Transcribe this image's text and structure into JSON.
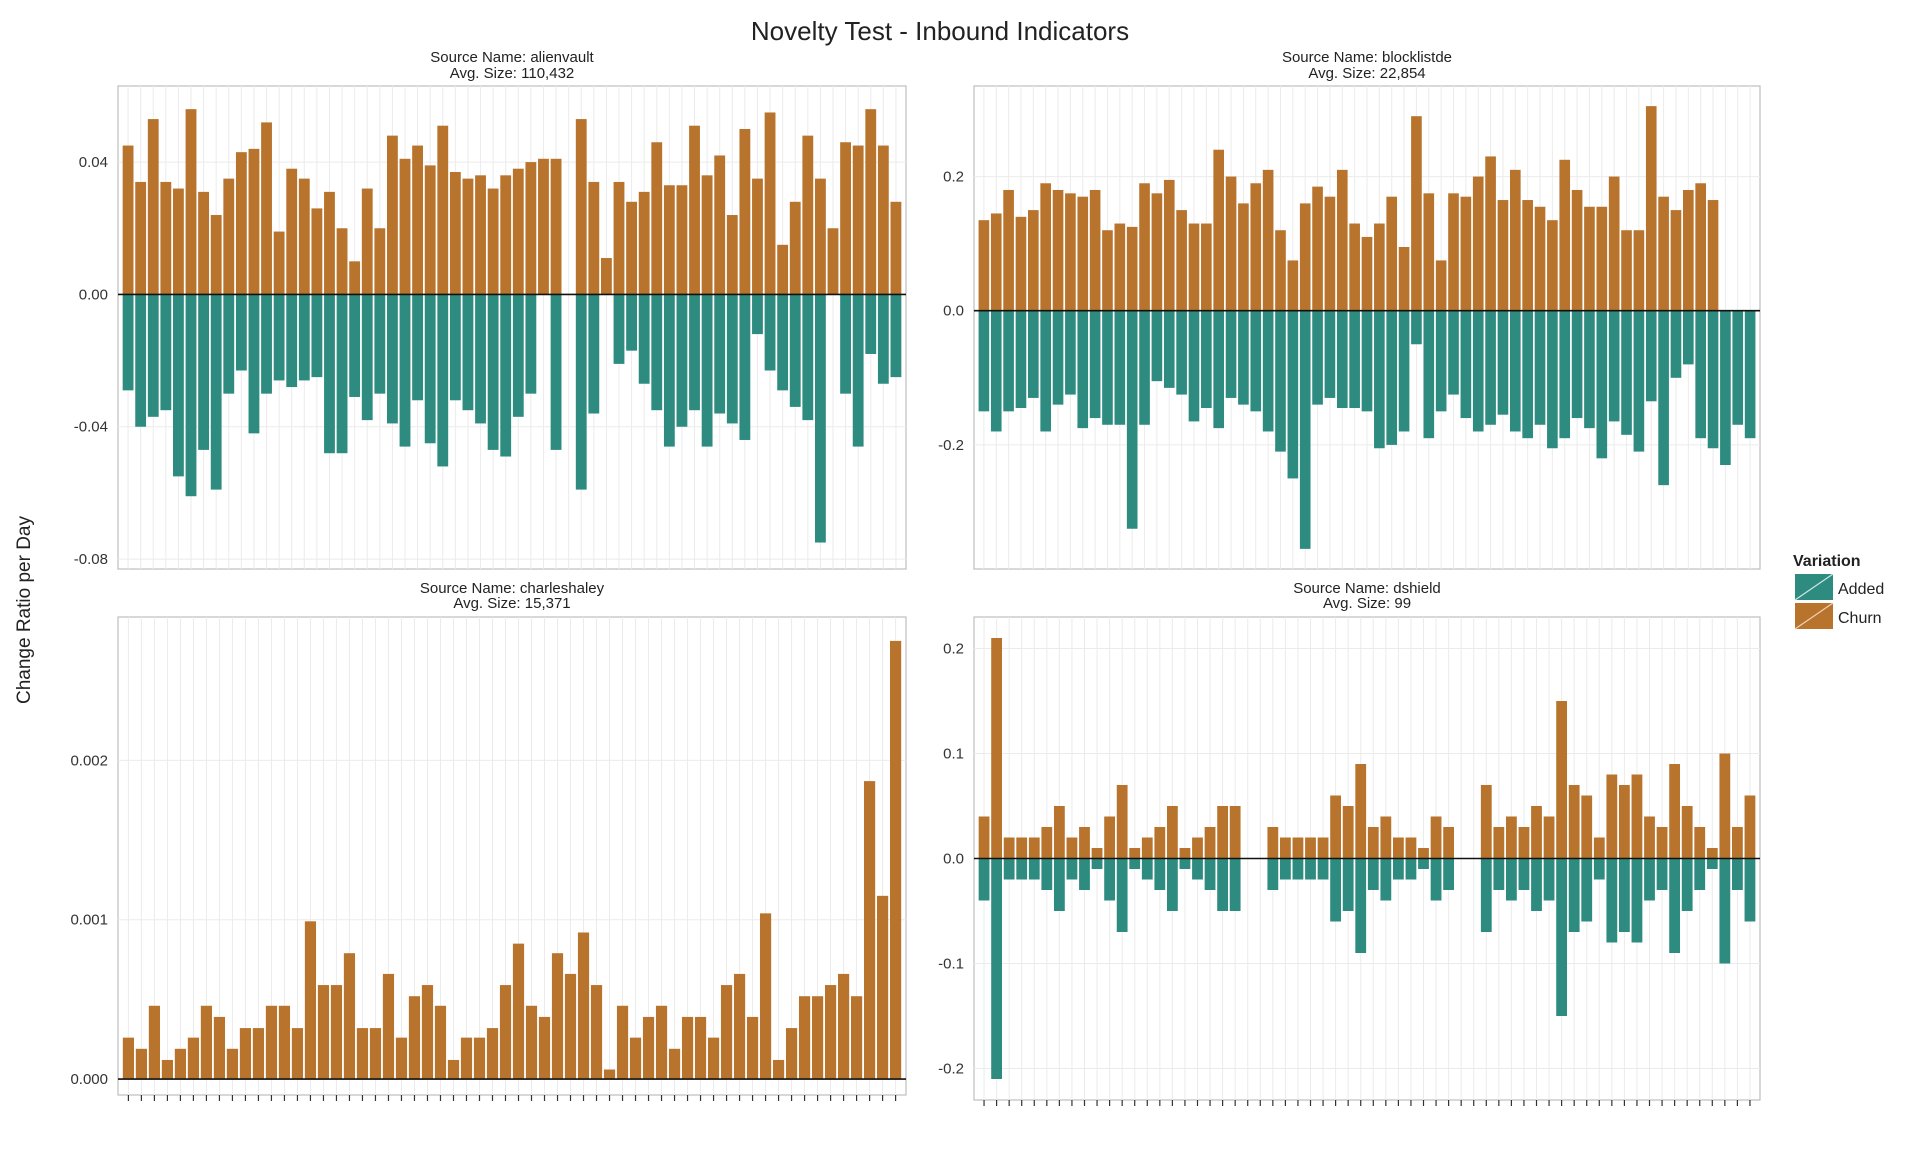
{
  "figure": {
    "title": "Novelty Test - Inbound Indicators",
    "ylabel": "Change Ratio per Day",
    "legend": {
      "title": "Variation",
      "items": [
        {
          "label": "Added",
          "color": "#2e8b80"
        },
        {
          "label": "Churn",
          "color": "#b8732c"
        }
      ]
    }
  },
  "chart_data": [
    {
      "type": "bar",
      "title": "Source Name: alienvault",
      "subtitle": "Avg. Size: 110,432",
      "ylim": [
        -0.083,
        0.063
      ],
      "yticks": [
        0.04,
        0.0,
        -0.04,
        -0.08
      ],
      "ytick_labels": [
        "0.04",
        "0.00",
        "-0.04",
        "-0.08"
      ],
      "series": [
        {
          "name": "Churn",
          "values": [
            0.045,
            0.034,
            0.053,
            0.034,
            0.032,
            0.056,
            0.031,
            0.024,
            0.035,
            0.043,
            0.044,
            0.052,
            0.019,
            0.038,
            0.035,
            0.026,
            0.031,
            0.02,
            0.01,
            0.032,
            0.02,
            0.048,
            0.041,
            0.045,
            0.039,
            0.051,
            0.037,
            0.035,
            0.036,
            0.032,
            0.036,
            0.038,
            0.04,
            0.041,
            0.041,
            0.0,
            0.053,
            0.034,
            0.011,
            0.034,
            0.028,
            0.031,
            0.046,
            0.033,
            0.033,
            0.051,
            0.036,
            0.042,
            0.024,
            0.05,
            0.035,
            0.055,
            0.015,
            0.028,
            0.048,
            0.035,
            0.02,
            0.046,
            0.045,
            0.056,
            0.045,
            0.028
          ]
        },
        {
          "name": "Added",
          "values": [
            -0.029,
            -0.04,
            -0.037,
            -0.035,
            -0.055,
            -0.061,
            -0.047,
            -0.059,
            -0.03,
            -0.023,
            -0.042,
            -0.03,
            -0.026,
            -0.028,
            -0.026,
            -0.025,
            -0.048,
            -0.048,
            -0.031,
            -0.038,
            -0.03,
            -0.039,
            -0.046,
            -0.032,
            -0.045,
            -0.052,
            -0.032,
            -0.035,
            -0.039,
            -0.047,
            -0.049,
            -0.037,
            -0.03,
            -0.0,
            -0.047,
            -0.0,
            -0.059,
            -0.036,
            -0.0,
            -0.021,
            -0.017,
            -0.027,
            -0.035,
            -0.046,
            -0.04,
            -0.035,
            -0.046,
            -0.036,
            -0.039,
            -0.044,
            -0.012,
            -0.023,
            -0.029,
            -0.034,
            -0.038,
            -0.075,
            -0.0,
            -0.03,
            -0.046,
            -0.018,
            -0.027,
            -0.025
          ]
        }
      ]
    },
    {
      "type": "bar",
      "title": "Source Name: blocklistde",
      "subtitle": "Avg. Size: 22,854",
      "ylim": [
        -0.385,
        0.335
      ],
      "yticks": [
        0.2,
        0.0,
        -0.2
      ],
      "ytick_labels": [
        "0.2",
        "0.0",
        "-0.2"
      ],
      "series": [
        {
          "name": "Churn",
          "values": [
            0.135,
            0.145,
            0.18,
            0.14,
            0.15,
            0.19,
            0.18,
            0.175,
            0.17,
            0.18,
            0.12,
            0.13,
            0.125,
            0.19,
            0.175,
            0.195,
            0.15,
            0.13,
            0.13,
            0.24,
            0.2,
            0.16,
            0.19,
            0.21,
            0.12,
            0.075,
            0.16,
            0.185,
            0.17,
            0.21,
            0.13,
            0.11,
            0.13,
            0.17,
            0.095,
            0.29,
            0.175,
            0.075,
            0.175,
            0.17,
            0.2,
            0.23,
            0.165,
            0.21,
            0.165,
            0.155,
            0.135,
            0.225,
            0.18,
            0.155,
            0.155,
            0.2,
            0.12,
            0.12,
            0.305,
            0.17,
            0.15,
            0.18,
            0.19,
            0.165
          ]
        },
        {
          "name": "Added",
          "values": [
            -0.15,
            -0.18,
            -0.15,
            -0.145,
            -0.13,
            -0.18,
            -0.14,
            -0.125,
            -0.175,
            -0.16,
            -0.17,
            -0.17,
            -0.325,
            -0.17,
            -0.105,
            -0.115,
            -0.125,
            -0.165,
            -0.145,
            -0.175,
            -0.13,
            -0.14,
            -0.15,
            -0.18,
            -0.21,
            -0.25,
            -0.355,
            -0.14,
            -0.13,
            -0.145,
            -0.145,
            -0.15,
            -0.205,
            -0.2,
            -0.18,
            -0.05,
            -0.19,
            -0.15,
            -0.125,
            -0.16,
            -0.18,
            -0.17,
            -0.155,
            -0.18,
            -0.19,
            -0.17,
            -0.205,
            -0.19,
            -0.16,
            -0.175,
            -0.22,
            -0.165,
            -0.185,
            -0.21,
            -0.135,
            -0.26,
            -0.1,
            -0.08,
            -0.19,
            -0.205,
            -0.23,
            -0.17,
            -0.19
          ]
        }
      ]
    },
    {
      "type": "bar",
      "title": "Source Name: charleshaley",
      "subtitle": "Avg. Size: 15,371",
      "ylim": [
        -0.0001,
        0.0029
      ],
      "yticks": [
        0.002,
        0.001,
        0.0
      ],
      "ytick_labels": [
        "0.002",
        "0.001",
        "0.000"
      ],
      "series": [
        {
          "name": "Churn",
          "values": [
            0.00026,
            0.00019,
            0.00046,
            0.00012,
            0.00019,
            0.00026,
            0.00046,
            0.00039,
            0.00019,
            0.00032,
            0.00032,
            0.00046,
            0.00046,
            0.00032,
            0.00099,
            0.00059,
            0.00059,
            0.00079,
            0.00032,
            0.00032,
            0.00066,
            0.00026,
            0.00052,
            0.00059,
            0.00046,
            0.00012,
            0.00026,
            0.00026,
            0.00032,
            0.00059,
            0.00085,
            0.00046,
            0.00039,
            0.00079,
            0.00066,
            0.00092,
            0.00059,
            6e-05,
            0.00046,
            0.00026,
            0.00039,
            0.00046,
            0.00019,
            0.00039,
            0.00039,
            0.00026,
            0.00059,
            0.00066,
            0.00039,
            0.00104,
            0.00012,
            0.00032,
            0.00052,
            0.00052,
            0.00059,
            0.00066,
            0.00052,
            0.00187,
            0.00115,
            0.00275
          ]
        }
      ]
    },
    {
      "type": "bar",
      "title": "Source Name: dshield",
      "subtitle": "Avg. Size: 99",
      "ylim": [
        -0.23,
        0.23
      ],
      "yticks": [
        0.2,
        0.1,
        0.0,
        -0.1,
        -0.2
      ],
      "ytick_labels": [
        "0.2",
        "0.1",
        "0.0",
        "-0.1",
        "-0.2"
      ],
      "series": [
        {
          "name": "Churn",
          "values": [
            0.04,
            0.21,
            0.02,
            0.02,
            0.02,
            0.03,
            0.05,
            0.02,
            0.03,
            0.01,
            0.04,
            0.07,
            0.01,
            0.02,
            0.03,
            0.05,
            0.01,
            0.02,
            0.03,
            0.05,
            0.05,
            0.0,
            0.0,
            0.03,
            0.02,
            0.02,
            0.02,
            0.02,
            0.06,
            0.05,
            0.09,
            0.03,
            0.04,
            0.02,
            0.02,
            0.01,
            0.04,
            0.03,
            0.0,
            0.0,
            0.07,
            0.03,
            0.04,
            0.03,
            0.05,
            0.04,
            0.15,
            0.07,
            0.06,
            0.02,
            0.08,
            0.07,
            0.08,
            0.04,
            0.03,
            0.09,
            0.05,
            0.03,
            0.01,
            0.1,
            0.03,
            0.06
          ]
        },
        {
          "name": "Added",
          "values": [
            -0.04,
            -0.21,
            -0.02,
            -0.02,
            -0.02,
            -0.03,
            -0.05,
            -0.02,
            -0.03,
            -0.01,
            -0.04,
            -0.07,
            -0.01,
            -0.02,
            -0.03,
            -0.05,
            -0.01,
            -0.02,
            -0.03,
            -0.05,
            -0.05,
            0.0,
            0.0,
            -0.03,
            -0.02,
            -0.02,
            -0.02,
            -0.02,
            -0.06,
            -0.05,
            -0.09,
            -0.03,
            -0.04,
            -0.02,
            -0.02,
            -0.01,
            -0.04,
            -0.03,
            0.0,
            0.0,
            -0.07,
            -0.03,
            -0.04,
            -0.03,
            -0.05,
            -0.04,
            -0.15,
            -0.07,
            -0.06,
            -0.02,
            -0.08,
            -0.07,
            -0.08,
            -0.04,
            -0.03,
            -0.09,
            -0.05,
            -0.03,
            -0.01,
            -0.1,
            -0.03,
            -0.06
          ]
        }
      ]
    }
  ]
}
